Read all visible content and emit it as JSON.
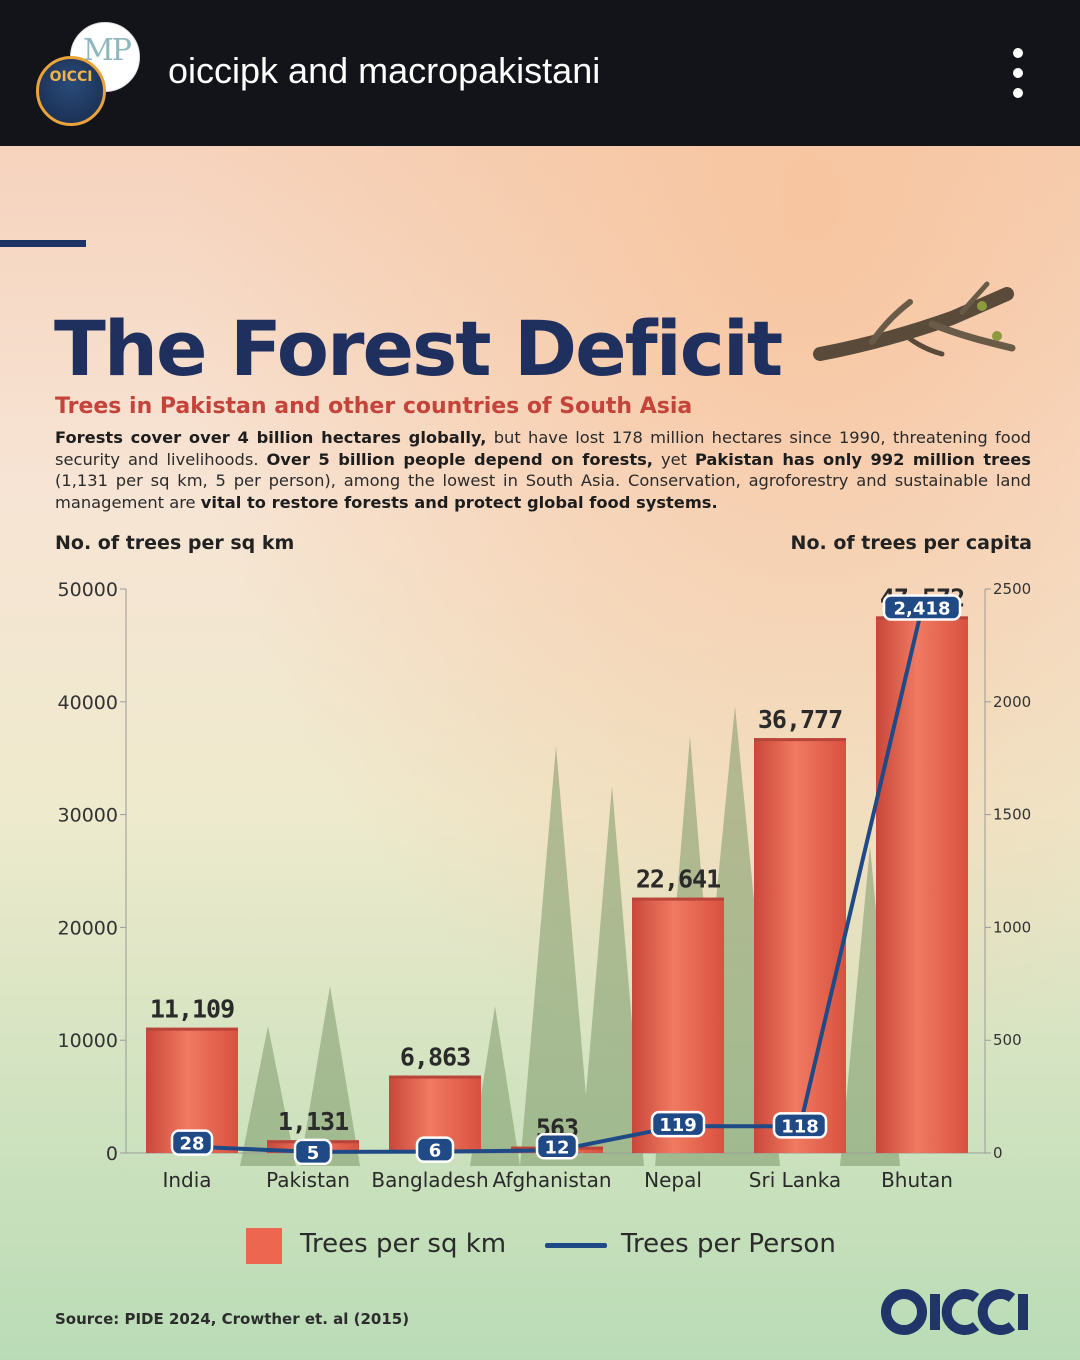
{
  "header": {
    "account_name": "oiccipk and macropakistani",
    "avatar_front_text": "OICCI",
    "avatar_back_text": "MP",
    "more_icon": "more-vertical-icon"
  },
  "poster": {
    "title": "The Forest Deficit",
    "subtitle": "Trees in Pakistan and other countries of South Asia",
    "body_runs": [
      {
        "text": "Forests cover over 4 billion hectares globally,",
        "bold": true
      },
      {
        "text": " but have lost 178 million hectares since 1990, threatening food security and livelihoods. ",
        "bold": false
      },
      {
        "text": "Over 5 billion people depend on forests,",
        "bold": true
      },
      {
        "text": " yet ",
        "bold": false
      },
      {
        "text": "Pakistan has only 992 million trees",
        "bold": true
      },
      {
        "text": " (1,131 per sq km, 5 per person), among the lowest in South Asia. Conservation, agroforestry and sustainable land management are ",
        "bold": false
      },
      {
        "text": "vital to restore forests and protect global food systems.",
        "bold": true
      }
    ],
    "source": "Source: PIDE 2024, Crowther et. al (2015)",
    "brand_logo": "OICCI"
  },
  "chart_data": {
    "type": "bar",
    "categories": [
      "India",
      "Pakistan",
      "Bangladesh",
      "Afghanistan",
      "Nepal",
      "Sri Lanka",
      "Bhutan"
    ],
    "series": [
      {
        "name": "Trees per sq km",
        "kind": "bar",
        "axis": "left",
        "values": [
          11109,
          1131,
          6863,
          563,
          22641,
          36777,
          47572
        ],
        "labels": [
          "11,109",
          "1,131",
          "6,863",
          "563",
          "22,641",
          "36,777",
          "47,572"
        ],
        "color": "#ec6650"
      },
      {
        "name": "Trees per Person",
        "kind": "line",
        "axis": "right",
        "values": [
          28,
          5,
          6,
          12,
          119,
          118,
          2418
        ],
        "labels": [
          "28",
          "5",
          "6",
          "12",
          "119",
          "118",
          "2,418"
        ],
        "color": "#1f4a86"
      }
    ],
    "ylabel": "No. of trees per sq km",
    "y2label": "No. of trees per capita",
    "ylim": [
      0,
      50000
    ],
    "y2lim": [
      0,
      2500
    ],
    "yticks": [
      "0",
      "10000",
      "20000",
      "30000",
      "40000",
      "50000"
    ],
    "y2ticks": [
      "0",
      "500",
      "1000",
      "1500",
      "2000",
      "2500"
    ],
    "legend": [
      "Trees per sq km",
      "Trees per Person"
    ],
    "legend_position": "bottom",
    "grid": false
  }
}
